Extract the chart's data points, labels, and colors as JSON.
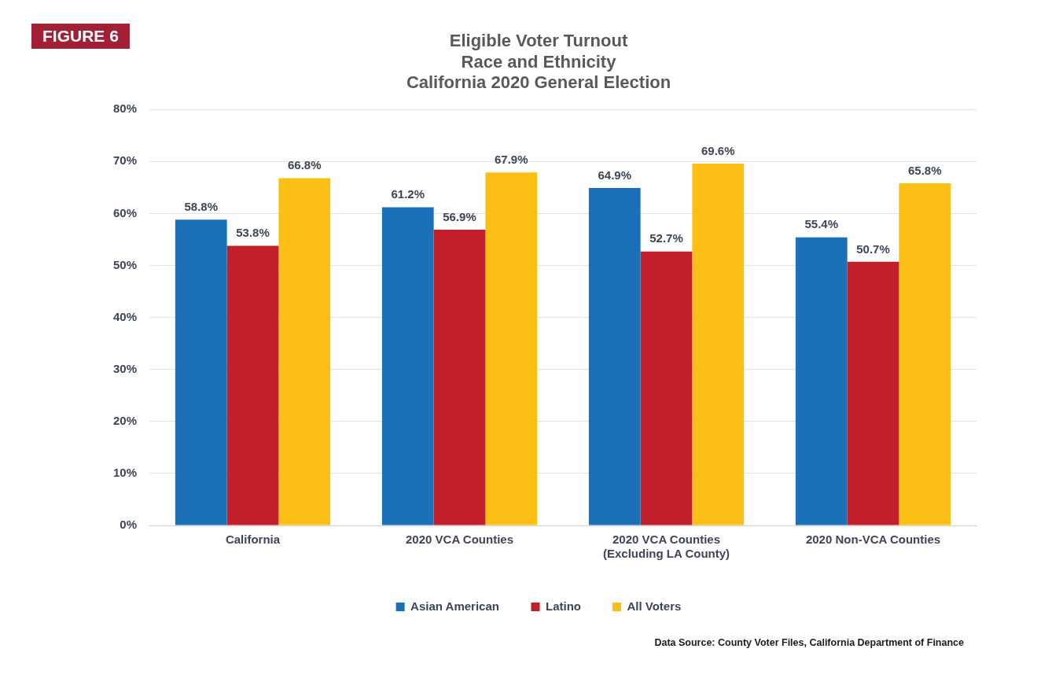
{
  "chart_data": {
    "type": "bar",
    "title": "Eligible Voter Turnout\nRace and Ethnicity\nCalifornia 2020 General Election",
    "categories": [
      "California",
      "2020 VCA Counties",
      "2020 VCA Counties\n(Excluding LA County)",
      "2020 Non-VCA Counties"
    ],
    "series": [
      {
        "name": "Asian American",
        "color": "#1b71b8",
        "values": [
          58.8,
          61.2,
          64.9,
          55.4
        ],
        "value_labels": [
          "58.8%",
          "61.2%",
          "64.9%",
          "55.4%"
        ]
      },
      {
        "name": "Latino",
        "color": "#c11f29",
        "values": [
          53.8,
          56.9,
          52.7,
          50.7
        ],
        "value_labels": [
          "53.8%",
          "56.9%",
          "52.7%",
          "50.7%"
        ]
      },
      {
        "name": "All Voters",
        "color": "#fbbf15",
        "values": [
          66.8,
          67.9,
          69.6,
          65.8
        ],
        "value_labels": [
          "66.8%",
          "67.9%",
          "69.6%",
          "65.8%"
        ]
      }
    ],
    "ylim": [
      0,
      80
    ],
    "yticks": [
      {
        "value": 0,
        "label": "0%"
      },
      {
        "value": 10,
        "label": "10%"
      },
      {
        "value": 20,
        "label": "20%"
      },
      {
        "value": 30,
        "label": "30%"
      },
      {
        "value": 40,
        "label": "40%"
      },
      {
        "value": 50,
        "label": "50%"
      },
      {
        "value": 60,
        "label": "60%"
      },
      {
        "value": 70,
        "label": "70%"
      },
      {
        "value": 80,
        "label": "80%"
      }
    ],
    "grid": "y",
    "legend": "bottom",
    "annotations": [
      "FIGURE 6",
      "Data Source: County Voter Files, California Department of Finance"
    ]
  }
}
